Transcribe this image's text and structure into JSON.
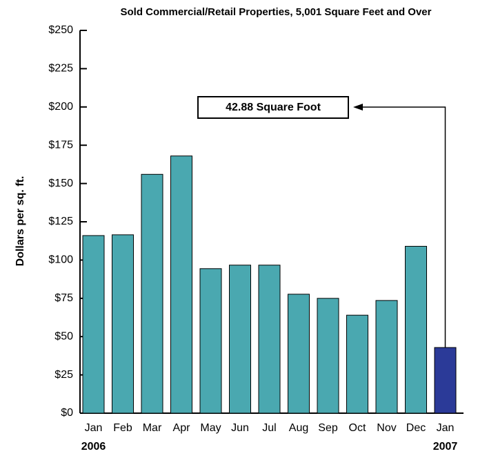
{
  "chart_data": {
    "type": "bar",
    "title": "Sold Commercial/Retail Properties, 5,001 Square Feet and Over",
    "y_label": "Dollars per sq. ft.",
    "categories": [
      "Jan",
      "Feb",
      "Mar",
      "Apr",
      "May",
      "Jun",
      "Jul",
      "Aug",
      "Sep",
      "Oct",
      "Nov",
      "Dec",
      "Jan"
    ],
    "year_labels": [
      "2006",
      "2007"
    ],
    "values": [
      116,
      116.5,
      156,
      168,
      94.4,
      96.7,
      96.7,
      77.7,
      75,
      64,
      73.6,
      109,
      42.88
    ],
    "colors": [
      "#4aa8b0",
      "#4aa8b0",
      "#4aa8b0",
      "#4aa8b0",
      "#4aa8b0",
      "#4aa8b0",
      "#4aa8b0",
      "#4aa8b0",
      "#4aa8b0",
      "#4aa8b0",
      "#4aa8b0",
      "#4aa8b0",
      "#2b3a98"
    ],
    "annotation": "42.88 Square Foot",
    "ylim": [
      0,
      250
    ],
    "yticks": [
      {
        "value": 0,
        "label": "$0"
      },
      {
        "value": 25,
        "label": "$25"
      },
      {
        "value": 50,
        "label": "$50"
      },
      {
        "value": 75,
        "label": "$75"
      },
      {
        "value": 100,
        "label": "$100"
      },
      {
        "value": 125,
        "label": "$125"
      },
      {
        "value": 150,
        "label": "$150"
      },
      {
        "value": 175,
        "label": "$175"
      },
      {
        "value": 200,
        "label": "$200"
      },
      {
        "value": 225,
        "label": "$225"
      },
      {
        "value": 250,
        "label": "$250"
      }
    ],
    "grid": false
  }
}
